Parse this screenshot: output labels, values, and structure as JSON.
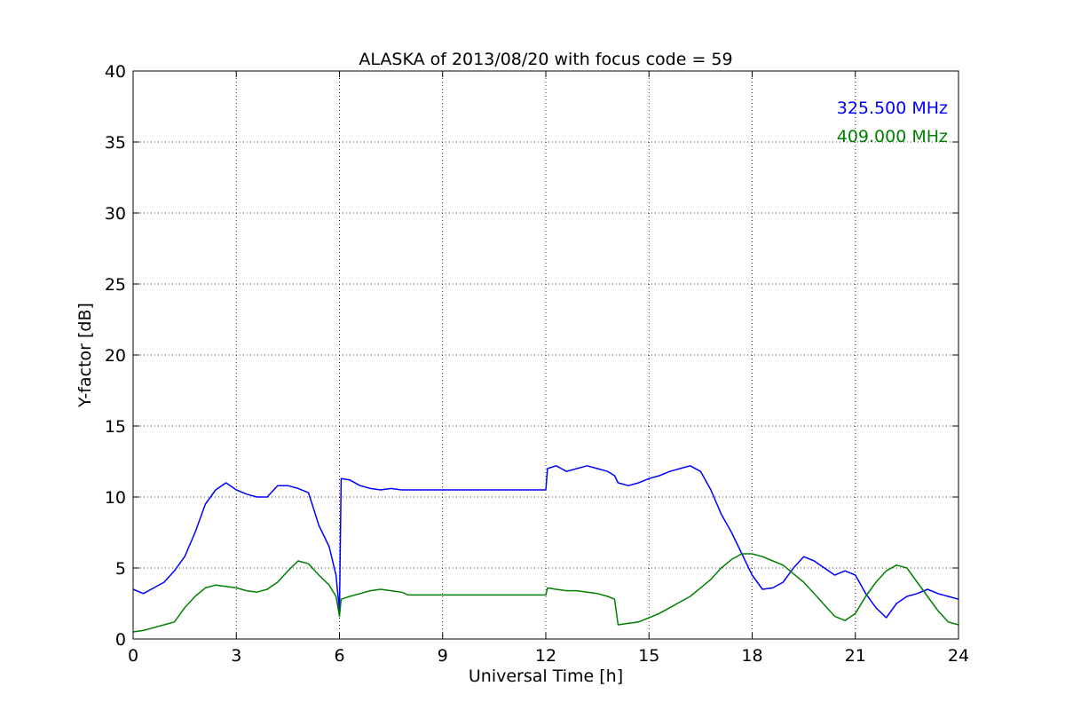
{
  "chart_data": {
    "type": "line",
    "title": "ALASKA of 2013/08/20 with focus code = 59",
    "xlabel": "Universal Time [h]",
    "ylabel": "Y-factor [dB]",
    "xlim": [
      0,
      24
    ],
    "ylim": [
      0,
      40
    ],
    "xticks": [
      0,
      3,
      6,
      9,
      12,
      15,
      18,
      21,
      24
    ],
    "yticks": [
      0,
      5,
      10,
      15,
      20,
      25,
      30,
      35,
      40
    ],
    "grid": true,
    "legend_position": "top-right",
    "series": [
      {
        "name": "325.500 MHz",
        "color": "#0000ff",
        "x": [
          0.0,
          0.3,
          0.6,
          0.9,
          1.2,
          1.5,
          1.8,
          2.1,
          2.4,
          2.7,
          3.0,
          3.3,
          3.6,
          3.9,
          4.2,
          4.5,
          4.8,
          5.1,
          5.4,
          5.7,
          5.9,
          6.0,
          6.05,
          6.3,
          6.6,
          6.9,
          7.2,
          7.5,
          7.8,
          8.0,
          12.0,
          12.05,
          12.3,
          12.6,
          12.9,
          13.2,
          13.5,
          13.8,
          14.0,
          14.1,
          14.4,
          14.7,
          15.0,
          15.3,
          15.6,
          15.9,
          16.2,
          16.5,
          16.8,
          17.1,
          17.4,
          17.7,
          18.0,
          18.3,
          18.6,
          18.9,
          19.2,
          19.5,
          19.8,
          20.1,
          20.4,
          20.7,
          21.0,
          21.3,
          21.6,
          21.9,
          22.2,
          22.5,
          22.8,
          23.1,
          23.4,
          23.7,
          24.0
        ],
        "values": [
          3.5,
          3.2,
          3.6,
          4.0,
          4.8,
          5.8,
          7.5,
          9.5,
          10.5,
          11.0,
          10.5,
          10.2,
          10.0,
          10.0,
          10.8,
          10.8,
          10.6,
          10.3,
          8.0,
          6.5,
          4.5,
          2.0,
          11.3,
          11.2,
          10.8,
          10.6,
          10.5,
          10.6,
          10.5,
          10.5,
          10.5,
          12.0,
          12.2,
          11.8,
          12.0,
          12.2,
          12.0,
          11.8,
          11.5,
          11.0,
          10.8,
          11.0,
          11.3,
          11.5,
          11.8,
          12.0,
          12.2,
          11.8,
          10.5,
          8.8,
          7.5,
          6.0,
          4.5,
          3.5,
          3.6,
          4.0,
          5.0,
          5.8,
          5.5,
          5.0,
          4.5,
          4.8,
          4.5,
          3.2,
          2.2,
          1.5,
          2.5,
          3.0,
          3.2,
          3.5,
          3.2,
          3.0,
          2.8
        ]
      },
      {
        "name": "409.000 MHz",
        "color": "#008000",
        "x": [
          0.0,
          0.3,
          0.6,
          0.9,
          1.2,
          1.5,
          1.8,
          2.1,
          2.4,
          2.7,
          3.0,
          3.3,
          3.6,
          3.9,
          4.2,
          4.5,
          4.8,
          5.1,
          5.4,
          5.7,
          5.9,
          6.0,
          6.05,
          6.3,
          6.6,
          6.9,
          7.2,
          7.5,
          7.8,
          8.0,
          12.0,
          12.05,
          12.3,
          12.6,
          12.9,
          13.2,
          13.5,
          13.8,
          14.0,
          14.1,
          14.4,
          14.7,
          15.0,
          15.3,
          15.6,
          15.9,
          16.2,
          16.5,
          16.8,
          17.1,
          17.4,
          17.7,
          18.0,
          18.3,
          18.6,
          18.9,
          19.2,
          19.5,
          19.8,
          20.1,
          20.4,
          20.7,
          21.0,
          21.3,
          21.6,
          21.9,
          22.2,
          22.5,
          22.8,
          23.1,
          23.4,
          23.7,
          24.0
        ],
        "values": [
          0.5,
          0.6,
          0.8,
          1.0,
          1.2,
          2.2,
          3.0,
          3.6,
          3.8,
          3.7,
          3.6,
          3.4,
          3.3,
          3.5,
          4.0,
          4.8,
          5.5,
          5.3,
          4.5,
          3.8,
          3.0,
          1.6,
          2.8,
          3.0,
          3.2,
          3.4,
          3.5,
          3.4,
          3.3,
          3.1,
          3.1,
          3.6,
          3.5,
          3.4,
          3.4,
          3.3,
          3.2,
          3.0,
          2.8,
          1.0,
          1.1,
          1.2,
          1.5,
          1.8,
          2.2,
          2.6,
          3.0,
          3.6,
          4.2,
          5.0,
          5.6,
          6.0,
          6.0,
          5.8,
          5.5,
          5.2,
          4.6,
          4.0,
          3.2,
          2.4,
          1.6,
          1.3,
          1.8,
          3.0,
          4.0,
          4.8,
          5.2,
          5.0,
          4.0,
          3.0,
          2.0,
          1.2,
          1.0
        ]
      }
    ]
  }
}
